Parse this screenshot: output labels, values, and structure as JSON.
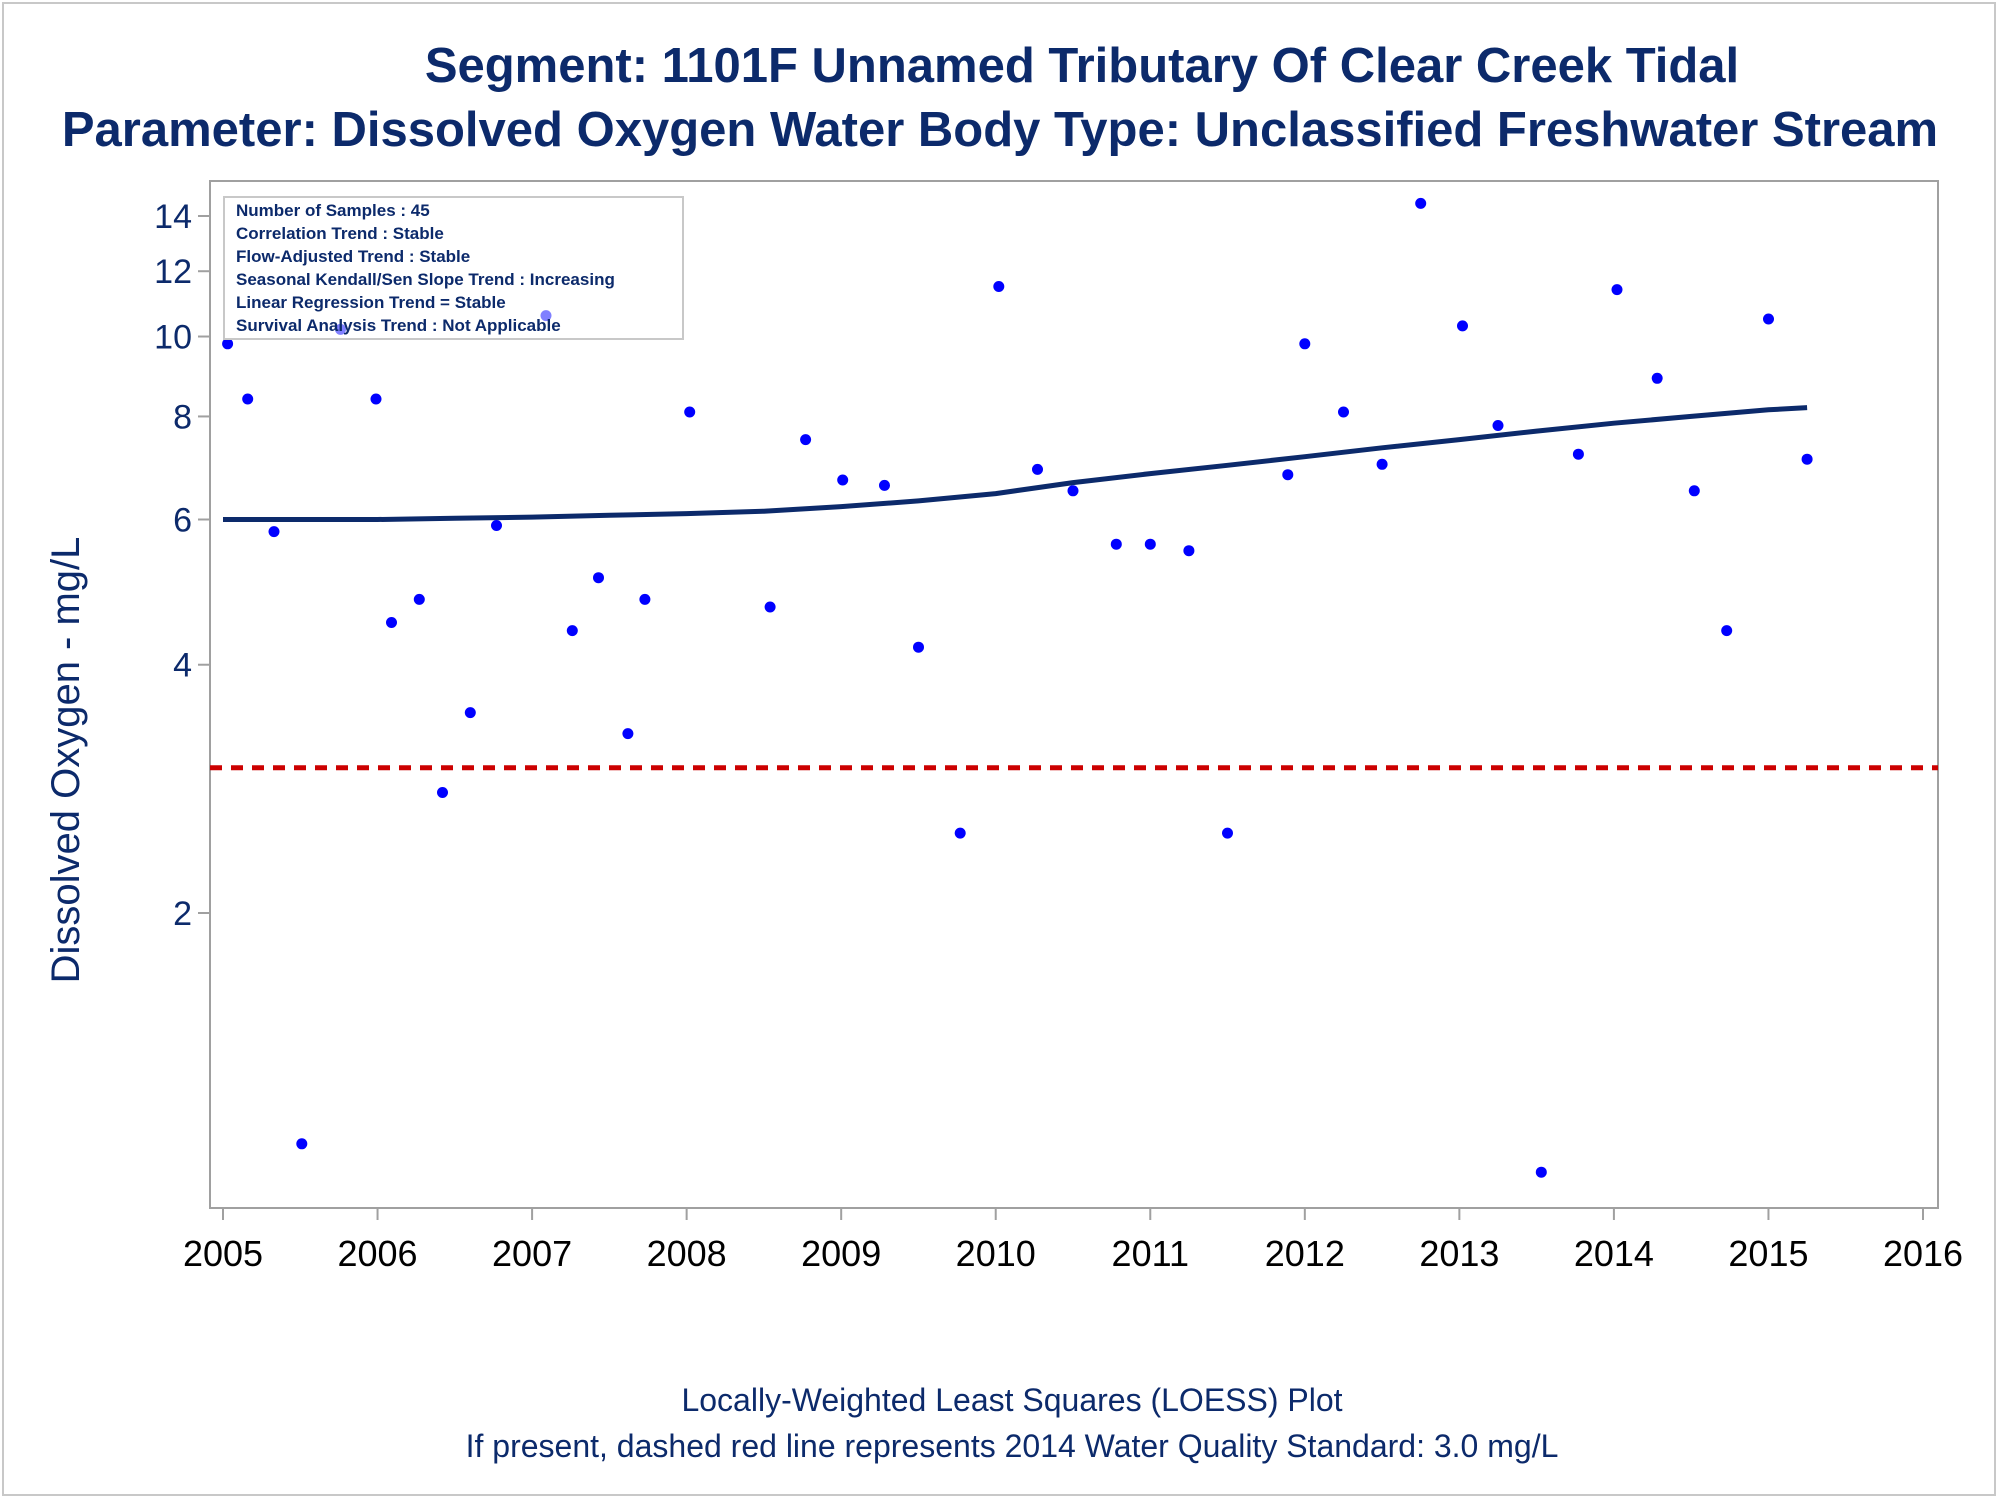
{
  "titles": {
    "line1": "Segment: 1101F  Unnamed Tributary Of Clear Creek Tidal",
    "line2": "Parameter: Dissolved Oxygen   Water Body Type: Unclassified Freshwater Stream"
  },
  "footnotes": {
    "line1": "Locally-Weighted Least Squares (LOESS) Plot",
    "line2": "If present, dashed red line represents 2014 Water Quality Standard: 3.0 mg/L"
  },
  "stats_box": [
    "Number of Samples : 45",
    "Correlation Trend : Stable",
    "Flow-Adjusted Trend : Stable",
    "Seasonal Kendall/Sen Slope Trend : Increasing",
    "Linear Regression Trend = Stable",
    "Survival Analysis Trend : Not Applicable"
  ],
  "colors": {
    "text": "#0c2a6b",
    "points": "#0000ff",
    "loess": "#0c2a6b",
    "standard_line": "#cc0000",
    "frame": "#a0a0a0"
  },
  "chart_data": {
    "type": "scatter",
    "ylabel": "Dissolved Oxygen - mg/L",
    "xlabel": "",
    "y_scale": "log",
    "ylim": [
      0.95,
      15
    ],
    "xlim": [
      2004.93,
      2016.1
    ],
    "x_ticks": [
      "2005",
      "2006",
      "2007",
      "2008",
      "2009",
      "2010",
      "2011",
      "2012",
      "2013",
      "2014",
      "2015",
      "2016"
    ],
    "y_ticks": [
      "2",
      "4",
      "6",
      "8",
      "10",
      "12",
      "14"
    ],
    "grid": false,
    "standard_line": {
      "value": 3.0,
      "style": "dashed"
    },
    "series": [
      {
        "kind": "points",
        "x": [
          2005.03,
          2005.16,
          2005.33,
          2005.51,
          2005.76,
          2005.99,
          2006.09,
          2006.27,
          2006.42,
          2006.6,
          2006.77,
          2007.09,
          2007.26,
          2007.43,
          2007.62,
          2007.73,
          2008.02,
          2008.54,
          2008.77,
          2009.01,
          2009.28,
          2009.5,
          2009.77,
          2010.02,
          2010.27,
          2010.5,
          2010.78,
          2011.0,
          2011.25,
          2011.5,
          2011.89,
          2012.0,
          2012.25,
          2012.5,
          2012.75,
          2013.02,
          2013.25,
          2013.53,
          2013.77,
          2014.02,
          2014.28,
          2014.52,
          2014.73,
          2015.0,
          2015.25
        ],
        "y": [
          9.8,
          8.4,
          5.8,
          1.05,
          10.2,
          8.4,
          4.5,
          4.8,
          2.8,
          3.5,
          5.9,
          10.6,
          4.4,
          5.1,
          3.3,
          4.8,
          8.1,
          4.7,
          7.5,
          6.7,
          6.6,
          4.2,
          2.5,
          11.5,
          6.9,
          6.5,
          5.6,
          5.6,
          5.5,
          2.5,
          6.8,
          9.8,
          8.1,
          7.0,
          14.5,
          10.3,
          7.8,
          0.97,
          7.2,
          11.4,
          8.9,
          6.5,
          4.4,
          10.5,
          7.1
        ]
      },
      {
        "kind": "loess",
        "x": [
          2005.0,
          2005.5,
          2006.0,
          2006.5,
          2007.0,
          2007.5,
          2008.0,
          2008.5,
          2009.0,
          2009.5,
          2010.0,
          2010.5,
          2011.0,
          2011.5,
          2012.0,
          2012.5,
          2013.0,
          2013.5,
          2014.0,
          2014.5,
          2015.0,
          2015.25
        ],
        "y": [
          6.0,
          6.0,
          6.0,
          6.02,
          6.04,
          6.07,
          6.1,
          6.14,
          6.22,
          6.32,
          6.45,
          6.65,
          6.82,
          6.98,
          7.15,
          7.33,
          7.5,
          7.68,
          7.85,
          8.0,
          8.15,
          8.2
        ]
      }
    ]
  }
}
